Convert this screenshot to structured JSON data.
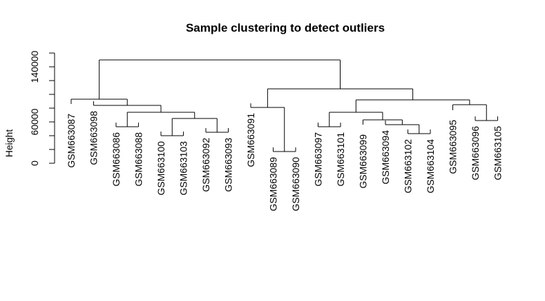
{
  "chart_data": {
    "type": "dendrogram",
    "title": "Sample clustering to detect outliers",
    "ylabel": "Height",
    "ylim": [
      0,
      160000
    ],
    "y_tick_labels": [
      0,
      60000,
      140000
    ],
    "y_minor_ticks": [
      0,
      20000,
      40000,
      60000,
      80000,
      100000,
      120000,
      140000,
      160000
    ],
    "grid": false,
    "leaves": [
      "GSM663087",
      "GSM663098",
      "GSM663086",
      "GSM663088",
      "GSM663100",
      "GSM663103",
      "GSM663092",
      "GSM663093",
      "GSM663091",
      "GSM663089",
      "GSM663090",
      "GSM663097",
      "GSM663101",
      "GSM663099",
      "GSM663094",
      "GSM663102",
      "GSM663104",
      "GSM663095",
      "GSM663096",
      "GSM663105"
    ],
    "leaf_heights": [
      80000,
      84000,
      53000,
      53000,
      40000,
      40000,
      45000,
      45000,
      81000,
      17000,
      17000,
      53000,
      53000,
      50000,
      56000,
      43000,
      43000,
      71000,
      62000,
      62000
    ],
    "merges": [
      {
        "id": "m1",
        "a": "GSM663086",
        "b": "GSM663088",
        "height": 53000
      },
      {
        "id": "m2",
        "a": "GSM663100",
        "b": "GSM663103",
        "height": 40000
      },
      {
        "id": "m3",
        "a": "GSM663092",
        "b": "GSM663093",
        "height": 45000
      },
      {
        "id": "m4",
        "a": "m2",
        "b": "m3",
        "height": 65000
      },
      {
        "id": "m5",
        "a": "m1",
        "b": "m4",
        "height": 74000
      },
      {
        "id": "m6",
        "a": "GSM663098",
        "b": "m5",
        "height": 84000
      },
      {
        "id": "m7",
        "a": "GSM663087",
        "b": "m6",
        "height": 93000
      },
      {
        "id": "m8",
        "a": "GSM663089",
        "b": "GSM663090",
        "height": 17000
      },
      {
        "id": "m9",
        "a": "GSM663091",
        "b": "m8",
        "height": 81000
      },
      {
        "id": "m10",
        "a": "GSM663097",
        "b": "GSM663101",
        "height": 53000
      },
      {
        "id": "m11",
        "a": "GSM663102",
        "b": "GSM663104",
        "height": 43000
      },
      {
        "id": "m12",
        "a": "GSM663094",
        "b": "m11",
        "height": 56000
      },
      {
        "id": "m13",
        "a": "GSM663099",
        "b": "m12",
        "height": 63000
      },
      {
        "id": "m14",
        "a": "m10",
        "b": "m13",
        "height": 74000
      },
      {
        "id": "m15",
        "a": "GSM663096",
        "b": "GSM663105",
        "height": 62000
      },
      {
        "id": "m16",
        "a": "GSM663095",
        "b": "m15",
        "height": 85000
      },
      {
        "id": "m17",
        "a": "m14",
        "b": "m16",
        "height": 92000
      },
      {
        "id": "m18",
        "a": "m9",
        "b": "m17",
        "height": 108000
      },
      {
        "id": "m19",
        "a": "m7",
        "b": "m18",
        "height": 150000
      }
    ]
  }
}
